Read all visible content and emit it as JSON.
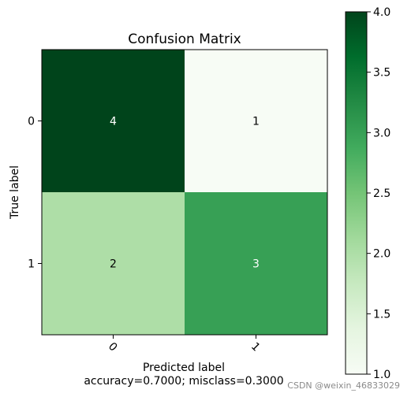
{
  "chart_data": {
    "type": "heatmap",
    "title": "Confusion Matrix",
    "xlabel": "Predicted label",
    "ylabel": "True label",
    "subtitle": "accuracy=0.7000; misclass=0.3000",
    "x_tick_labels": [
      "0",
      "1"
    ],
    "y_tick_labels": [
      "0",
      "1"
    ],
    "matrix": [
      [
        4,
        1
      ],
      [
        2,
        3
      ]
    ],
    "cell_labels": [
      [
        "4",
        "1"
      ],
      [
        "2",
        "3"
      ]
    ],
    "colormap": "Greens",
    "colorbar": {
      "min": 1.0,
      "max": 4.0,
      "ticks": [
        1.0,
        1.5,
        2.0,
        2.5,
        3.0,
        3.5,
        4.0
      ],
      "tick_labels": [
        "1.0",
        "1.5",
        "2.0",
        "2.5",
        "3.0",
        "3.5",
        "4.0"
      ]
    },
    "colors": {
      "min": "#f7fcf5",
      "low_mid": "#b3e0a6",
      "mid_high": "#3a9c55",
      "max": "#00441b"
    }
  },
  "watermark": "CSDN @weixin_46833029"
}
